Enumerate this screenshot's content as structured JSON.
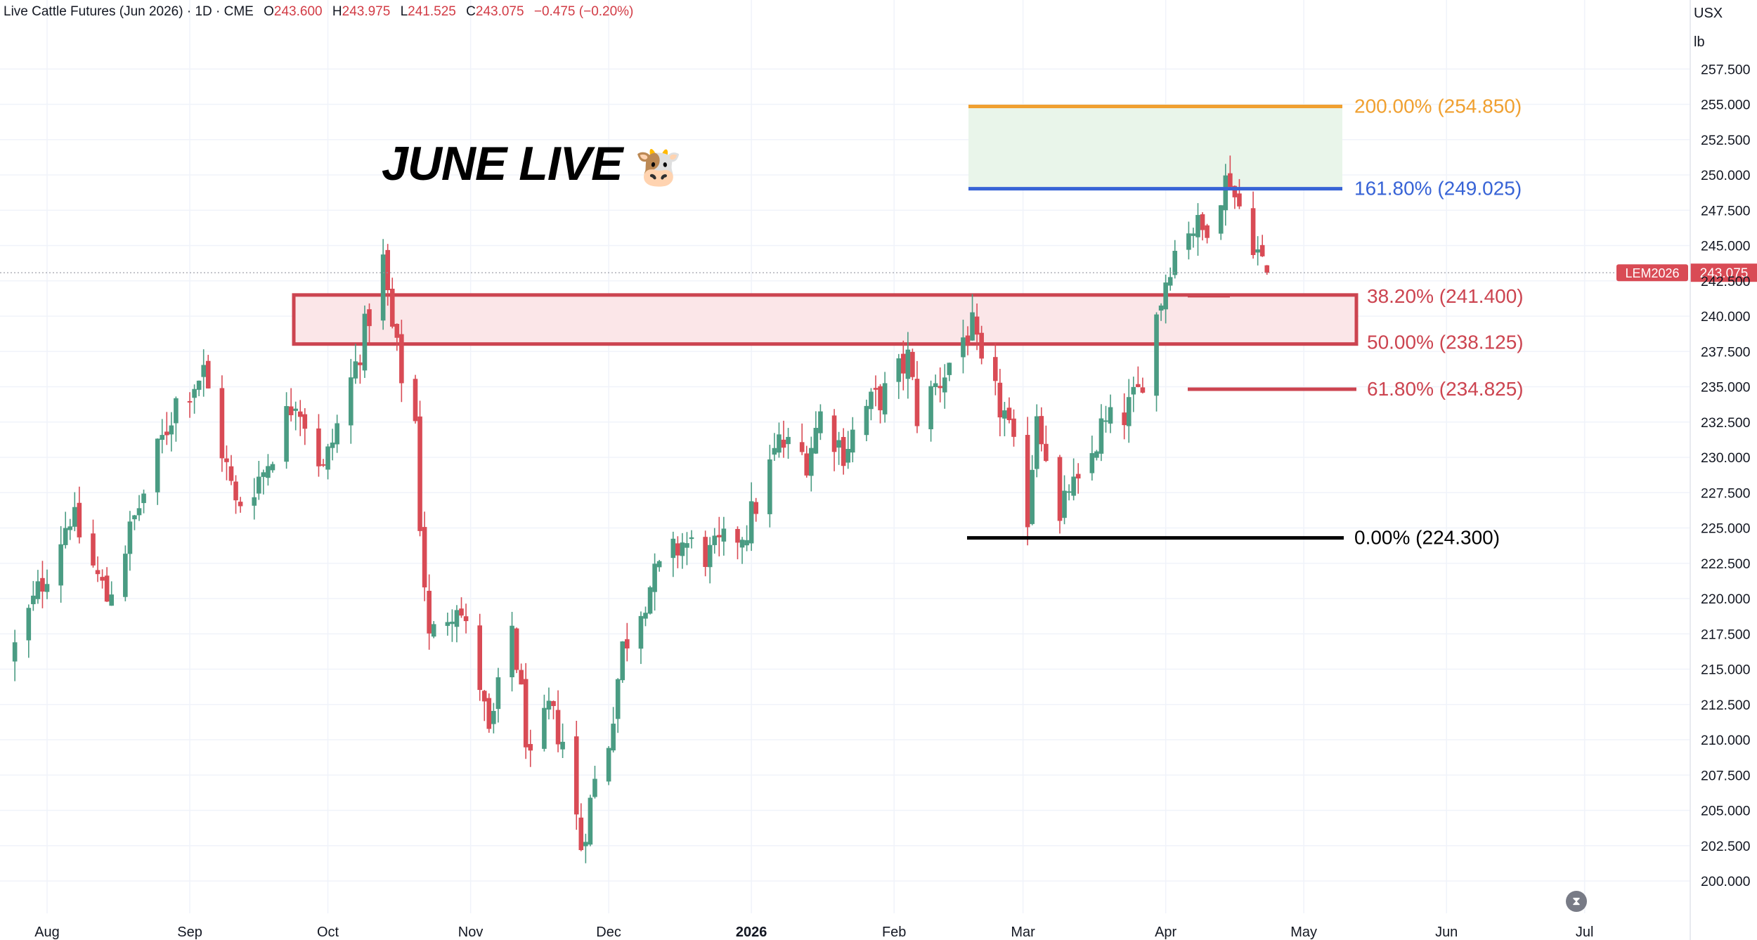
{
  "header": {
    "symbol": "Live Cattle Futures (Jun 2026) · 1D · CME",
    "open_key": "O",
    "open_value": "243.600",
    "high_key": "H",
    "high_value": "243.975",
    "low_key": "L",
    "low_value": "241.525",
    "close_key": "C",
    "close_value": "243.075",
    "change": "−0.475 (−0.20%)"
  },
  "units": {
    "currency": "USX",
    "unit": "lb"
  },
  "annotation": {
    "title": "JUNE LIVE",
    "emoji": "🐮"
  },
  "price_tag": {
    "symbol": "LEM2026",
    "value": "243.075"
  },
  "colors": {
    "up": "#26a69a",
    "up_body": "#4a9c83",
    "down": "#d94b55",
    "fib_200": "#f0a030",
    "fib_161": "#3763d6",
    "fib_382": "#cc4450",
    "fib_0": "#000000",
    "grid": "#f0f3fa",
    "zone_green": "#e9f5ea",
    "zone_red": "#fbe6e8"
  },
  "replay_icon": "hourglass-icon",
  "chart_data": {
    "type": "candlestick",
    "title": "Live Cattle Futures (Jun 2026) · 1D · CME",
    "ylim": [
      198.5,
      260
    ],
    "y_ticks": [
      "200.000",
      "202.500",
      "205.000",
      "207.500",
      "210.000",
      "212.500",
      "215.000",
      "217.500",
      "220.000",
      "222.500",
      "225.000",
      "227.500",
      "230.000",
      "232.500",
      "235.000",
      "237.500",
      "240.000",
      "242.500",
      "245.000",
      "247.500",
      "250.000",
      "252.500",
      "255.000",
      "257.500"
    ],
    "x_labels": [
      "Aug",
      "Sep",
      "Oct",
      "Nov",
      "Dec",
      "2026",
      "Feb",
      "Mar",
      "Apr",
      "May",
      "Jun",
      "Jul"
    ],
    "grid": true,
    "last_price": 243.075,
    "fib_levels": [
      {
        "label": "200.00% (254.850)",
        "value": 254.85,
        "color": "#f0a030"
      },
      {
        "label": "161.80% (249.025)",
        "value": 249.025,
        "color": "#3763d6"
      },
      {
        "label": "38.20% (241.400)",
        "value": 241.4,
        "color": "#cc4450"
      },
      {
        "label": "50.00% (238.125)",
        "value": 238.125,
        "color": "#cc4450"
      },
      {
        "label": "61.80% (234.825)",
        "value": 234.825,
        "color": "#cc4450"
      },
      {
        "label": "0.00% (224.300)",
        "value": 224.3,
        "color": "#000000"
      }
    ],
    "zones": [
      {
        "name": "target-zone",
        "from": 249.025,
        "to": 254.85
      },
      {
        "name": "support-zone",
        "from": 238.125,
        "to": 241.4
      }
    ],
    "anchors": [
      {
        "date": "2025-07-25",
        "close": 216.5
      },
      {
        "date": "2025-08-06",
        "close": 226.0
      },
      {
        "date": "2025-08-14",
        "close": 220.0
      },
      {
        "date": "2025-08-29",
        "close": 234.0
      },
      {
        "date": "2025-09-04",
        "close": 236.0
      },
      {
        "date": "2025-09-11",
        "close": 226.5
      },
      {
        "date": "2025-09-17",
        "close": 229.0
      },
      {
        "date": "2025-09-24",
        "close": 234.5
      },
      {
        "date": "2025-09-30",
        "close": 229.0
      },
      {
        "date": "2025-10-07",
        "close": 236.5
      },
      {
        "date": "2025-10-13",
        "close": 243.8
      },
      {
        "date": "2025-10-15",
        "close": 239.0
      },
      {
        "date": "2025-10-17",
        "close": 235.8
      },
      {
        "date": "2025-10-20",
        "close": 232.5
      },
      {
        "date": "2025-10-21",
        "close": 225.5
      },
      {
        "date": "2025-10-23",
        "close": 217.0
      },
      {
        "date": "2025-10-29",
        "close": 220.0
      },
      {
        "date": "2025-11-03",
        "close": 214.0
      },
      {
        "date": "2025-11-05",
        "close": 210.0
      },
      {
        "date": "2025-11-10",
        "close": 218.0
      },
      {
        "date": "2025-11-14",
        "close": 208.0
      },
      {
        "date": "2025-11-18",
        "close": 212.0
      },
      {
        "date": "2025-11-21",
        "close": 210.0
      },
      {
        "date": "2025-11-25",
        "close": 202.5
      },
      {
        "date": "2025-11-28",
        "close": 207.0
      },
      {
        "date": "2025-12-01",
        "close": 210.0
      },
      {
        "date": "2025-12-04",
        "close": 216.5
      },
      {
        "date": "2025-12-10",
        "close": 221.0
      },
      {
        "date": "2025-12-17",
        "close": 224.0
      },
      {
        "date": "2025-12-23",
        "close": 223.0
      },
      {
        "date": "2025-12-31",
        "close": 225.0
      },
      {
        "date": "2026-01-07",
        "close": 231.0
      },
      {
        "date": "2026-01-13",
        "close": 230.0
      },
      {
        "date": "2026-01-16",
        "close": 233.0
      },
      {
        "date": "2026-01-21",
        "close": 230.5
      },
      {
        "date": "2026-01-26",
        "close": 233.5
      },
      {
        "date": "2026-01-30",
        "close": 234.5
      },
      {
        "date": "2026-02-04",
        "close": 237.0
      },
      {
        "date": "2026-02-06",
        "close": 233.0
      },
      {
        "date": "2026-02-11",
        "close": 235.5
      },
      {
        "date": "2026-02-16",
        "close": 238.5
      },
      {
        "date": "2026-02-18",
        "close": 239.0
      },
      {
        "date": "2026-02-20",
        "close": 236.0
      },
      {
        "date": "2026-02-25",
        "close": 233.0
      },
      {
        "date": "2026-03-02",
        "close": 226.0
      },
      {
        "date": "2026-03-04",
        "close": 233.5
      },
      {
        "date": "2026-03-06",
        "close": 230.5
      },
      {
        "date": "2026-03-09",
        "close": 225.0
      },
      {
        "date": "2026-03-11",
        "close": 228.0
      },
      {
        "date": "2026-03-13",
        "close": 227.5
      },
      {
        "date": "2026-03-18",
        "close": 232.0
      },
      {
        "date": "2026-03-23",
        "close": 233.0
      },
      {
        "date": "2026-03-26",
        "close": 234.5
      },
      {
        "date": "2026-03-30",
        "close": 240.0
      },
      {
        "date": "2026-04-02",
        "close": 244.0
      },
      {
        "date": "2026-04-06",
        "close": 246.5
      },
      {
        "date": "2026-04-09",
        "close": 246.0
      },
      {
        "date": "2026-04-13",
        "close": 249.0
      },
      {
        "date": "2026-04-15",
        "close": 250.0
      },
      {
        "date": "2026-04-16",
        "close": 248.5
      },
      {
        "date": "2026-04-20",
        "close": 245.5
      },
      {
        "date": "2026-04-22",
        "close": 243.6
      },
      {
        "date": "2026-04-23",
        "close": 243.075
      }
    ]
  }
}
